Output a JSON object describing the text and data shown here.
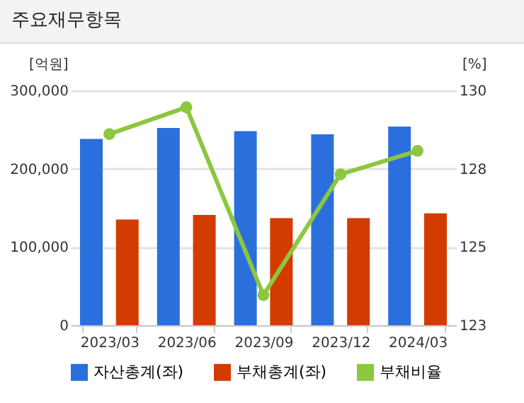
{
  "chart_data": {
    "type": "bar",
    "title": "주요재무항목",
    "ylabel": "[억원]",
    "y2label": "[%]",
    "categories": [
      "2023/03",
      "2023/06",
      "2023/09",
      "2023/12",
      "2024/03"
    ],
    "series": [
      {
        "name": "자산총계(좌)",
        "color": "#2a6fdb",
        "values": [
          238000,
          252000,
          248000,
          244000,
          254000
        ]
      },
      {
        "name": "부채총계(좌)",
        "color": "#d23c00",
        "values": [
          135000,
          141000,
          137000,
          137000,
          143000
        ]
      },
      {
        "name": "부채비율",
        "type": "line",
        "axis": "y2",
        "color": "#8dc63f",
        "values": [
          128.7,
          129.5,
          123.9,
          127.5,
          128.2
        ]
      }
    ],
    "ylim": [
      0,
      300000
    ],
    "yticks": [
      0,
      {
        "value": 100000,
        "label": "100,000"
      },
      {
        "value": 200000,
        "label": "200,000"
      },
      {
        "value": 300000,
        "label": "300,000"
      }
    ],
    "y2lim": [
      123,
      130
    ],
    "y2ticks": [
      123,
      {
        "value": 125.33,
        "label": "125"
      },
      {
        "value": 127.67,
        "label": "128"
      },
      130
    ],
    "grid": "y",
    "legend": "bottom",
    "marker": "circle"
  }
}
